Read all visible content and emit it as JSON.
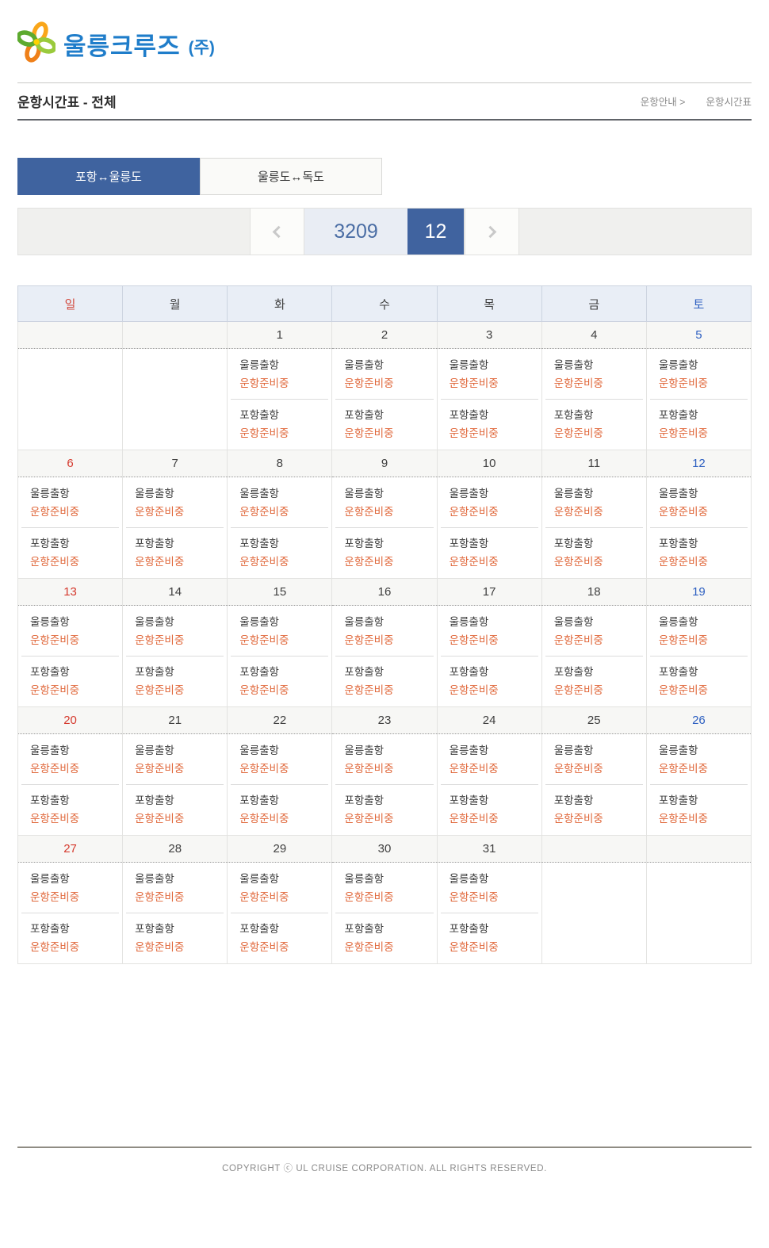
{
  "brand": {
    "name": "울릉크루즈",
    "suffix": "(주)",
    "logo_icon": "flower-pinwheel-icon"
  },
  "page": {
    "title": "운항시간표 - 전체",
    "breadcrumb": {
      "parent": "운항안내 >",
      "current": "운항시간표"
    }
  },
  "tabs": [
    {
      "label": "포항↔울릉도",
      "active": true
    },
    {
      "label": "울릉도↔독도",
      "active": false
    }
  ],
  "pager": {
    "prev_icon": "chevron-left-icon",
    "year": "3209",
    "month": "12",
    "next_icon": "chevron-right-icon"
  },
  "colors": {
    "accent_blue": "#3f639f",
    "logo_blue": "#1f7dca",
    "status_orange": "#e0673a",
    "sunday_red": "#d5392d",
    "saturday_blue": "#2d5fc1",
    "header_bg": "#e9eef6",
    "date_row_bg": "#f7f7f5"
  },
  "calendar": {
    "day_headers": [
      "일",
      "월",
      "화",
      "수",
      "목",
      "금",
      "토"
    ],
    "weeks": [
      [
        {
          "date": "",
          "entries": []
        },
        {
          "date": "",
          "entries": []
        },
        {
          "date": "1",
          "entries": [
            {
              "label": "울릉출항",
              "status": "운항준비중"
            },
            {
              "label": "포항출항",
              "status": "운항준비중"
            }
          ]
        },
        {
          "date": "2",
          "entries": [
            {
              "label": "울릉출항",
              "status": "운항준비중"
            },
            {
              "label": "포항출항",
              "status": "운항준비중"
            }
          ]
        },
        {
          "date": "3",
          "entries": [
            {
              "label": "울릉출항",
              "status": "운항준비중"
            },
            {
              "label": "포항출항",
              "status": "운항준비중"
            }
          ]
        },
        {
          "date": "4",
          "entries": [
            {
              "label": "울릉출항",
              "status": "운항준비중"
            },
            {
              "label": "포항출항",
              "status": "운항준비중"
            }
          ]
        },
        {
          "date": "5",
          "entries": [
            {
              "label": "울릉출항",
              "status": "운항준비중"
            },
            {
              "label": "포항출항",
              "status": "운항준비중"
            }
          ]
        }
      ],
      [
        {
          "date": "6",
          "entries": [
            {
              "label": "울릉출항",
              "status": "운항준비중"
            },
            {
              "label": "포항출항",
              "status": "운항준비중"
            }
          ]
        },
        {
          "date": "7",
          "entries": [
            {
              "label": "울릉출항",
              "status": "운항준비중"
            },
            {
              "label": "포항출항",
              "status": "운항준비중"
            }
          ]
        },
        {
          "date": "8",
          "entries": [
            {
              "label": "울릉출항",
              "status": "운항준비중"
            },
            {
              "label": "포항출항",
              "status": "운항준비중"
            }
          ]
        },
        {
          "date": "9",
          "entries": [
            {
              "label": "울릉출항",
              "status": "운항준비중"
            },
            {
              "label": "포항출항",
              "status": "운항준비중"
            }
          ]
        },
        {
          "date": "10",
          "entries": [
            {
              "label": "울릉출항",
              "status": "운항준비중"
            },
            {
              "label": "포항출항",
              "status": "운항준비중"
            }
          ]
        },
        {
          "date": "11",
          "entries": [
            {
              "label": "울릉출항",
              "status": "운항준비중"
            },
            {
              "label": "포항출항",
              "status": "운항준비중"
            }
          ]
        },
        {
          "date": "12",
          "entries": [
            {
              "label": "울릉출항",
              "status": "운항준비중"
            },
            {
              "label": "포항출항",
              "status": "운항준비중"
            }
          ]
        }
      ],
      [
        {
          "date": "13",
          "entries": [
            {
              "label": "울릉출항",
              "status": "운항준비중"
            },
            {
              "label": "포항출항",
              "status": "운항준비중"
            }
          ]
        },
        {
          "date": "14",
          "entries": [
            {
              "label": "울릉출항",
              "status": "운항준비중"
            },
            {
              "label": "포항출항",
              "status": "운항준비중"
            }
          ]
        },
        {
          "date": "15",
          "entries": [
            {
              "label": "울릉출항",
              "status": "운항준비중"
            },
            {
              "label": "포항출항",
              "status": "운항준비중"
            }
          ]
        },
        {
          "date": "16",
          "entries": [
            {
              "label": "울릉출항",
              "status": "운항준비중"
            },
            {
              "label": "포항출항",
              "status": "운항준비중"
            }
          ]
        },
        {
          "date": "17",
          "entries": [
            {
              "label": "울릉출항",
              "status": "운항준비중"
            },
            {
              "label": "포항출항",
              "status": "운항준비중"
            }
          ]
        },
        {
          "date": "18",
          "entries": [
            {
              "label": "울릉출항",
              "status": "운항준비중"
            },
            {
              "label": "포항출항",
              "status": "운항준비중"
            }
          ]
        },
        {
          "date": "19",
          "entries": [
            {
              "label": "울릉출항",
              "status": "운항준비중"
            },
            {
              "label": "포항출항",
              "status": "운항준비중"
            }
          ]
        }
      ],
      [
        {
          "date": "20",
          "entries": [
            {
              "label": "울릉출항",
              "status": "운항준비중"
            },
            {
              "label": "포항출항",
              "status": "운항준비중"
            }
          ]
        },
        {
          "date": "21",
          "entries": [
            {
              "label": "울릉출항",
              "status": "운항준비중"
            },
            {
              "label": "포항출항",
              "status": "운항준비중"
            }
          ]
        },
        {
          "date": "22",
          "entries": [
            {
              "label": "울릉출항",
              "status": "운항준비중"
            },
            {
              "label": "포항출항",
              "status": "운항준비중"
            }
          ]
        },
        {
          "date": "23",
          "entries": [
            {
              "label": "울릉출항",
              "status": "운항준비중"
            },
            {
              "label": "포항출항",
              "status": "운항준비중"
            }
          ]
        },
        {
          "date": "24",
          "entries": [
            {
              "label": "울릉출항",
              "status": "운항준비중"
            },
            {
              "label": "포항출항",
              "status": "운항준비중"
            }
          ]
        },
        {
          "date": "25",
          "entries": [
            {
              "label": "울릉출항",
              "status": "운항준비중"
            },
            {
              "label": "포항출항",
              "status": "운항준비중"
            }
          ]
        },
        {
          "date": "26",
          "entries": [
            {
              "label": "울릉출항",
              "status": "운항준비중"
            },
            {
              "label": "포항출항",
              "status": "운항준비중"
            }
          ]
        }
      ],
      [
        {
          "date": "27",
          "entries": [
            {
              "label": "울릉출항",
              "status": "운항준비중"
            },
            {
              "label": "포항출항",
              "status": "운항준비중"
            }
          ]
        },
        {
          "date": "28",
          "entries": [
            {
              "label": "울릉출항",
              "status": "운항준비중"
            },
            {
              "label": "포항출항",
              "status": "운항준비중"
            }
          ]
        },
        {
          "date": "29",
          "entries": [
            {
              "label": "울릉출항",
              "status": "운항준비중"
            },
            {
              "label": "포항출항",
              "status": "운항준비중"
            }
          ]
        },
        {
          "date": "30",
          "entries": [
            {
              "label": "울릉출항",
              "status": "운항준비중"
            },
            {
              "label": "포항출항",
              "status": "운항준비중"
            }
          ]
        },
        {
          "date": "31",
          "entries": [
            {
              "label": "울릉출항",
              "status": "운항준비중"
            },
            {
              "label": "포항출항",
              "status": "운항준비중"
            }
          ]
        },
        {
          "date": "",
          "entries": []
        },
        {
          "date": "",
          "entries": []
        }
      ]
    ]
  },
  "footer": {
    "copyright": "COPYRIGHT ⓒ UL CRUISE CORPORATION. ALL RIGHTS RESERVED."
  }
}
